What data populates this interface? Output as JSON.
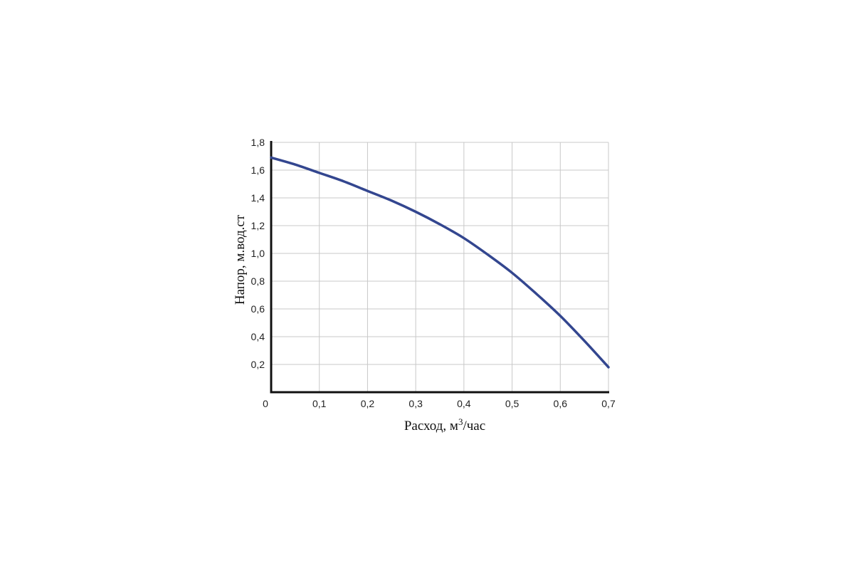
{
  "chart_data": {
    "type": "line",
    "title": "",
    "xlabel": "Расход, м",
    "xlabel_sup": "3",
    "xlabel_tail": "/час",
    "ylabel": "Напор, м.вод.ст",
    "xlim": [
      0,
      0.7
    ],
    "ylim": [
      0,
      1.8
    ],
    "x_ticks": [
      "0",
      "0,1",
      "0,2",
      "0,3",
      "0,4",
      "0,5",
      "0,6",
      "0,7"
    ],
    "y_ticks": [
      "0,2",
      "0,4",
      "0,6",
      "0,8",
      "1,0",
      "1,2",
      "1,4",
      "1,6",
      "1,8"
    ],
    "grid": true,
    "series": [
      {
        "color": "#33468f",
        "x": [
          0,
          0.05,
          0.1,
          0.15,
          0.2,
          0.25,
          0.3,
          0.35,
          0.4,
          0.45,
          0.5,
          0.55,
          0.6,
          0.65,
          0.7
        ],
        "y": [
          1.69,
          1.64,
          1.58,
          1.52,
          1.45,
          1.38,
          1.3,
          1.21,
          1.11,
          0.99,
          0.86,
          0.71,
          0.55,
          0.37,
          0.18
        ]
      }
    ]
  }
}
